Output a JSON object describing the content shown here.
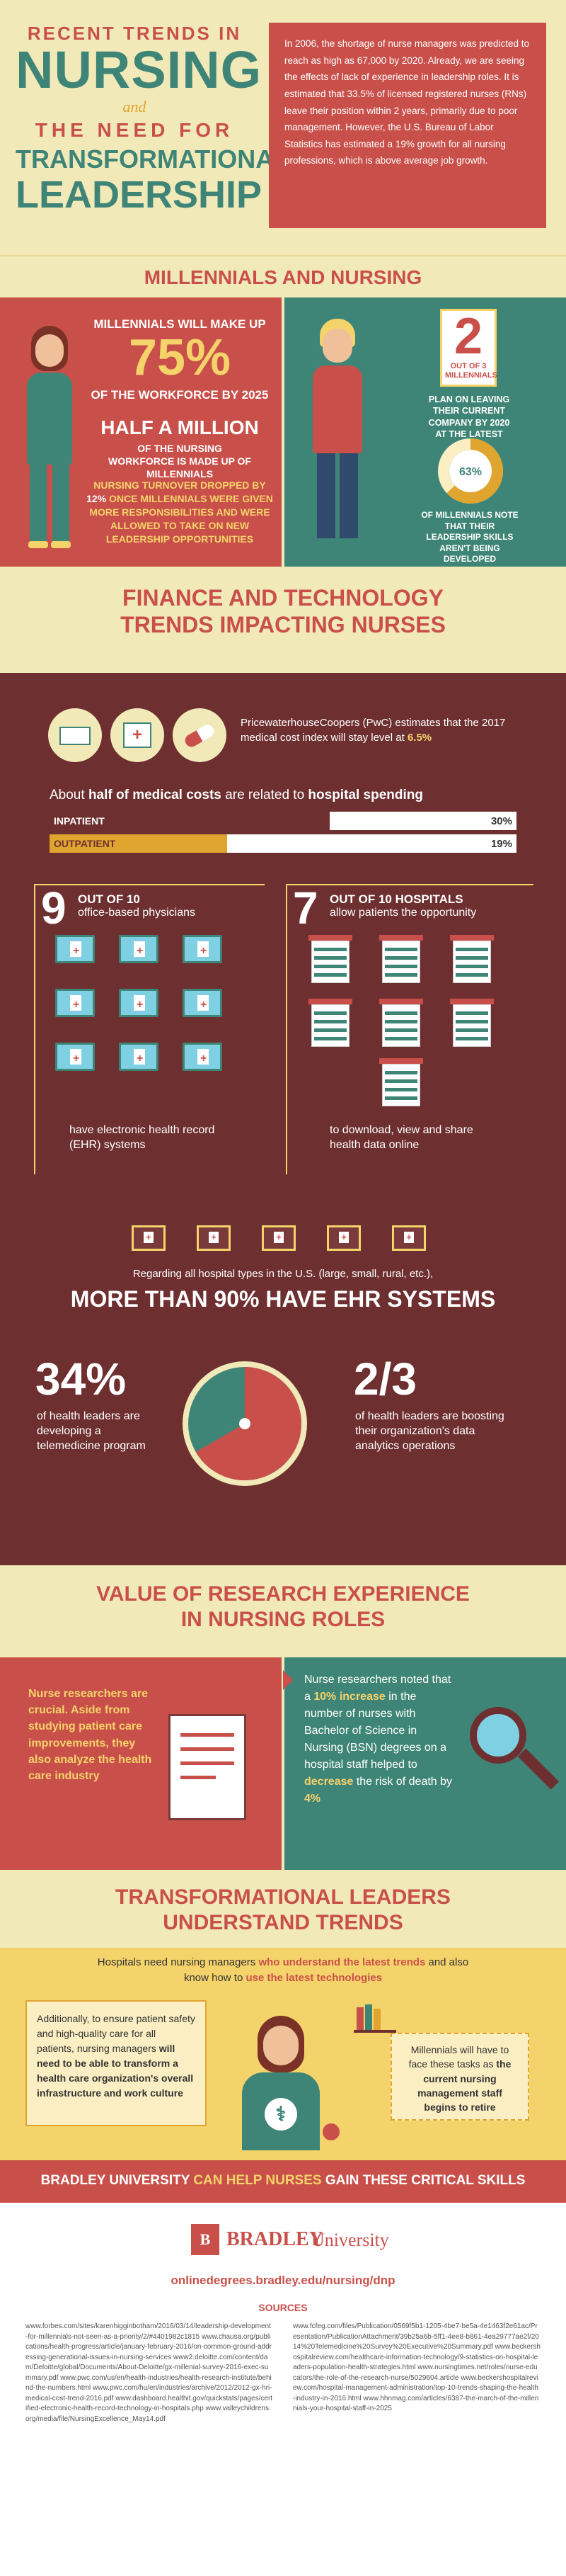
{
  "header": {
    "line1": "RECENT TRENDS IN",
    "line2": "NURSING",
    "and": "and",
    "line3": "THE NEED FOR",
    "line4": "TRANSFORMATIONAL",
    "line5": "LEADERSHIP",
    "intro": "In 2006, the shortage of nurse managers was predicted to reach as high as 67,000 by 2020. Already, we are seeing the effects of lack of experience in leadership roles. It is estimated that 33.5% of licensed registered nurses (RNs) leave their position within 2 years, primarily due to poor management. However, the U.S. Bureau of Labor Statistics has estimated a 19% growth for all nursing professions, which is above average job growth."
  },
  "millennials": {
    "title": "MILLENNIALS AND NURSING",
    "l1": "MILLENNIALS WILL MAKE UP",
    "pct": "75%",
    "l2": "OF THE WORKFORCE BY 2025",
    "half": "HALF A MILLION",
    "half_sub": "OF THE NURSING WORKFORCE IS MADE UP OF MILLENNIALS",
    "turnover": "NURSING TURNOVER DROPPED BY",
    "turnover_pct": "12%",
    "turnover_rest": "ONCE MILLENNIALS WERE GIVEN MORE RESPONSIBILITIES AND WERE ALLOWED TO TAKE ON NEW LEADERSHIP OPPORTUNITIES",
    "two": "2",
    "two_sub": "OUT OF 3 MILLENNIALS",
    "plan": "PLAN ON LEAVING THEIR CURRENT COMPANY BY 2020 AT THE LATEST",
    "donut_pct": "63%",
    "donut_value": 63,
    "donut_sub": "OF MILLENNIALS NOTE THAT THEIR LEADERSHIP SKILLS AREN'T BEING DEVELOPED"
  },
  "finance": {
    "title1": "FINANCE AND TECHNOLOGY",
    "title2": "TRENDS IMPACTING NURSES",
    "pwc_text": "PricewaterhouseCoopers (PwC) estimates that the 2017 medical cost index will stay level at",
    "pwc_pct": "6.5%",
    "half_costs_pre": "About",
    "half_costs_b1": "half of medical costs",
    "half_costs_mid": "are related to",
    "half_costs_b2": "hospital spending",
    "bars": [
      {
        "label": "INPATIENT",
        "pct_text": "30%",
        "value": 30
      },
      {
        "label": "OUTPATIENT",
        "pct_text": "19%",
        "value": 19
      }
    ],
    "nine": "9",
    "nine_sub1": "OUT OF 10",
    "nine_sub2": "office-based physicians",
    "nine_foot": "have electronic health record (EHR) systems",
    "seven": "7",
    "seven_sub1": "OUT OF 10 HOSPITALS",
    "seven_sub2": "allow patients the opportunity",
    "seven_foot": "to download, view and share health data online",
    "all_types": "Regarding all hospital types in the U.S. (large, small, rural, etc.),",
    "ehr_big": "MORE THAN 90% HAVE EHR SYSTEMS",
    "p34": "34%",
    "p34_text": "of health leaders are developing a telemedicine program",
    "p23": "2/3",
    "p23_text": "of health leaders are boosting their organization's data analytics operations"
  },
  "research": {
    "title1": "VALUE OF RESEARCH EXPERIENCE",
    "title2": "IN NURSING ROLES",
    "left": "Nurse researchers are crucial. Aside from studying patient care improvements, they also analyze the health care industry",
    "r1": "Nurse researchers noted that a",
    "r_pct": "10% increase",
    "r2": "in the number of nurses with Bachelor of Science in Nursing (BSN) degrees on a hospital staff helped to",
    "r_dec": "decrease",
    "r3": "the risk of death by",
    "r_4": "4%"
  },
  "transform": {
    "title1": "TRANSFORMATIONAL LEADERS",
    "title2": "UNDERSTAND TRENDS",
    "top1": "Hospitals need nursing managers",
    "top_b1": "who understand the latest trends",
    "top2": "and also know how to",
    "top_b2": "use the latest technologies",
    "left_a": "Additionally, to ensure patient safety and high-quality care for all patients, nursing managers",
    "left_b": "will need to be able to transform a health care organization's overall infrastructure and work culture",
    "right_a": "Millennials will have to face these tasks as",
    "right_b": "the current nursing management staff begins to retire",
    "banner_a": "BRADLEY UNIVERSITY",
    "banner_b": "CAN HELP NURSES",
    "banner_c": "GAIN THESE CRITICAL SKILLS"
  },
  "footer": {
    "logo_a": "BRADLEY",
    "logo_b": "University",
    "url": "onlinedegrees.bradley.edu/nursing/dnp",
    "sources_title": "SOURCES",
    "sources_left": "www.forbes.com/sites/karenhigginbotham/2016/03/14/leadership-development-for-millennials-not-seen-as-a-priority/2/#4401982c1815 www.chausa.org/publications/health-progress/article/january-february-2016/on-common-ground-addressing-generational-issues-in-nursing-services www2.deloitte.com/content/dam/Deloitte/global/Documents/About-Deloitte/gx-millenial-survey-2016-exec-summary.pdf www.pwc.com/us/en/health-industries/health-research-institute/behind-the-numbers.html www.pwc.com/hu/en/industries/archive/2012/2012-gx-hri-medical-cost-trend-2016.pdf www.dashboard.healthit.gov/quickstats/pages/certified-electronic-health-record-technology-in-hospitals.php www.valleychildrens.org/media/file/NursingExcellence_May14.pdf",
    "sources_right": "www.fcfeg.com/files/Publication/0569f5b1-1205-4be7-be5a-4e1463f2e61ac/Presentation/PublicationAttachment/39b25a6b-5ff1-4ee8-b861-4ea29777ae2f/2014%20Telemedicine%20Survey%20Executive%20Summary.pdf www.beckershospitalreview.com/healthcare-information-technology/9-statistics-on-hospital-leaders-population-health-strategies.html www.nursingtimes.net/roles/nurse-educators/the-role-of-the-research-nurse/5029604.article www.beckershospitalreview.com/hospital-management-administration/top-10-trends-shaping-the-health-industry-in-2016.html www.hhnmag.com/articles/6387-the-march-of-the-millennials-your-hospital-staff-in-2025"
  }
}
